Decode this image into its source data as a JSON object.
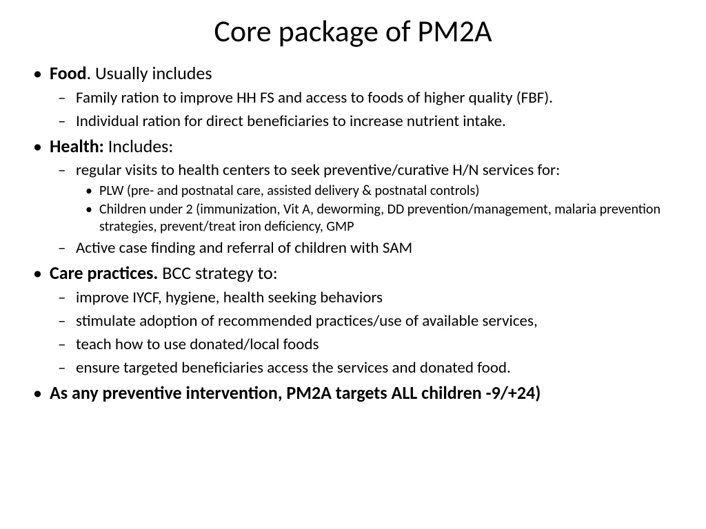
{
  "title": "Core package of PM2A",
  "colors": {
    "background": "#ffffff",
    "text": "#000000"
  },
  "typography": {
    "title_fontsize": 44,
    "title_weight": 400,
    "level1_fontsize": 26,
    "level2_fontsize": 23,
    "level3_fontsize": 20,
    "font_family": "Calibri"
  },
  "bullets": {
    "food": {
      "label_bold": "Food",
      "label_rest": ". Usually includes",
      "subs": [
        "Family ration to  improve HH FS and access to foods of higher quality (FBF).",
        "Individual ration for direct beneficiaries to increase nutrient intake."
      ]
    },
    "health": {
      "label_bold": "Health:",
      "label_rest": " Includes:",
      "subs": {
        "visits": "regular visits to health centers to seek preventive/curative H/N services for:",
        "visits_subs": [
          "PLW (pre- and postnatal care,  assisted delivery & postnatal controls)",
          "Children under 2 (immunization, Vit A, deworming, DD prevention/management, malaria prevention strategies, prevent/treat iron deficiency, GMP"
        ],
        "active": "Active case finding and referral of children with SAM"
      }
    },
    "care": {
      "label_bold": "Care practices.",
      "label_rest": "  BCC strategy to:",
      "subs": [
        "improve IYCF, hygiene, health seeking behaviors",
        "stimulate adoption of recommended practices/use of available services,",
        "teach how to use donated/local foods",
        "ensure targeted beneficiaries access the services and donated food."
      ]
    },
    "final": "As any preventive intervention, PM2A targets ALL children -9/+24)"
  }
}
